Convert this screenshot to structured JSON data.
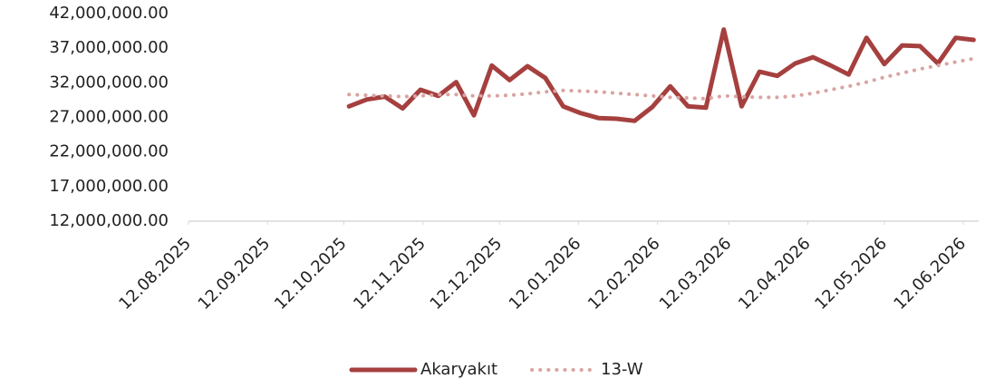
{
  "chart_data": {
    "type": "line",
    "x": [
      "2025-10-14",
      "2025-10-21",
      "2025-10-28",
      "2025-11-04",
      "2025-11-11",
      "2025-11-18",
      "2025-11-25",
      "2025-12-02",
      "2025-12-09",
      "2025-12-16",
      "2025-12-23",
      "2025-12-30",
      "2026-01-06",
      "2026-01-13",
      "2026-01-20",
      "2026-01-27",
      "2026-02-03",
      "2026-02-10",
      "2026-02-17",
      "2026-02-24",
      "2026-03-03",
      "2026-03-10",
      "2026-03-17",
      "2026-03-24",
      "2026-03-31",
      "2026-04-07",
      "2026-04-14",
      "2026-04-21",
      "2026-04-28",
      "2026-05-05",
      "2026-05-12",
      "2026-05-19",
      "2026-05-26",
      "2026-06-02",
      "2026-06-09",
      "2026-06-16"
    ],
    "series": [
      {
        "name": "Akaryakıt",
        "color": "#a5403f",
        "style": "solid",
        "values": [
          28600000,
          29600000,
          30000000,
          28300000,
          31000000,
          30100000,
          32100000,
          27300000,
          34500000,
          32400000,
          34400000,
          32700000,
          28600000,
          27600000,
          26900000,
          26800000,
          26500000,
          28500000,
          31500000,
          28600000,
          28400000,
          39700000,
          28600000,
          33600000,
          33000000,
          34800000,
          35700000,
          34500000,
          33200000,
          38500000,
          34700000,
          37400000,
          37300000,
          34800000,
          38500000,
          38200000
        ]
      },
      {
        "name": "13-W",
        "color": "#d9a3a2",
        "style": "dotted",
        "values": [
          30300000,
          30200000,
          30100000,
          30000000,
          30100000,
          30300000,
          30300000,
          30100000,
          30100000,
          30200000,
          30400000,
          30700000,
          30900000,
          30800000,
          30700000,
          30500000,
          30300000,
          30100000,
          29900000,
          29800000,
          29700000,
          30100000,
          30000000,
          29900000,
          29900000,
          30100000,
          30500000,
          31000000,
          31500000,
          32100000,
          32800000,
          33400000,
          34000000,
          34500000,
          35000000,
          35500000
        ]
      }
    ],
    "xlim": [
      "2025-08-12",
      "2026-06-18"
    ],
    "xticks": [
      {
        "value": "2025-08-12",
        "label": "12.08.2025"
      },
      {
        "value": "2025-09-12",
        "label": "12.09.2025"
      },
      {
        "value": "2025-10-12",
        "label": "12.10.2025"
      },
      {
        "value": "2025-11-12",
        "label": "12.11.2025"
      },
      {
        "value": "2025-12-12",
        "label": "12.12.2025"
      },
      {
        "value": "2026-01-12",
        "label": "12.01.2026"
      },
      {
        "value": "2026-02-12",
        "label": "12.02.2026"
      },
      {
        "value": "2026-03-12",
        "label": "12.03.2026"
      },
      {
        "value": "2026-04-12",
        "label": "12.04.2026"
      },
      {
        "value": "2026-05-12",
        "label": "12.05.2026"
      },
      {
        "value": "2026-06-12",
        "label": "12.06.2026"
      }
    ],
    "ylim": [
      12000000,
      42000000
    ],
    "yticks": [
      {
        "value": 12000000,
        "label": "12,000,000.00"
      },
      {
        "value": 17000000,
        "label": "17,000,000.00"
      },
      {
        "value": 22000000,
        "label": "22,000,000.00"
      },
      {
        "value": 27000000,
        "label": "27,000,000.00"
      },
      {
        "value": 32000000,
        "label": "32,000,000.00"
      },
      {
        "value": 37000000,
        "label": "37,000,000.00"
      },
      {
        "value": 42000000,
        "label": "42,000,000.00"
      }
    ],
    "grid": false,
    "legend": "bottom"
  }
}
